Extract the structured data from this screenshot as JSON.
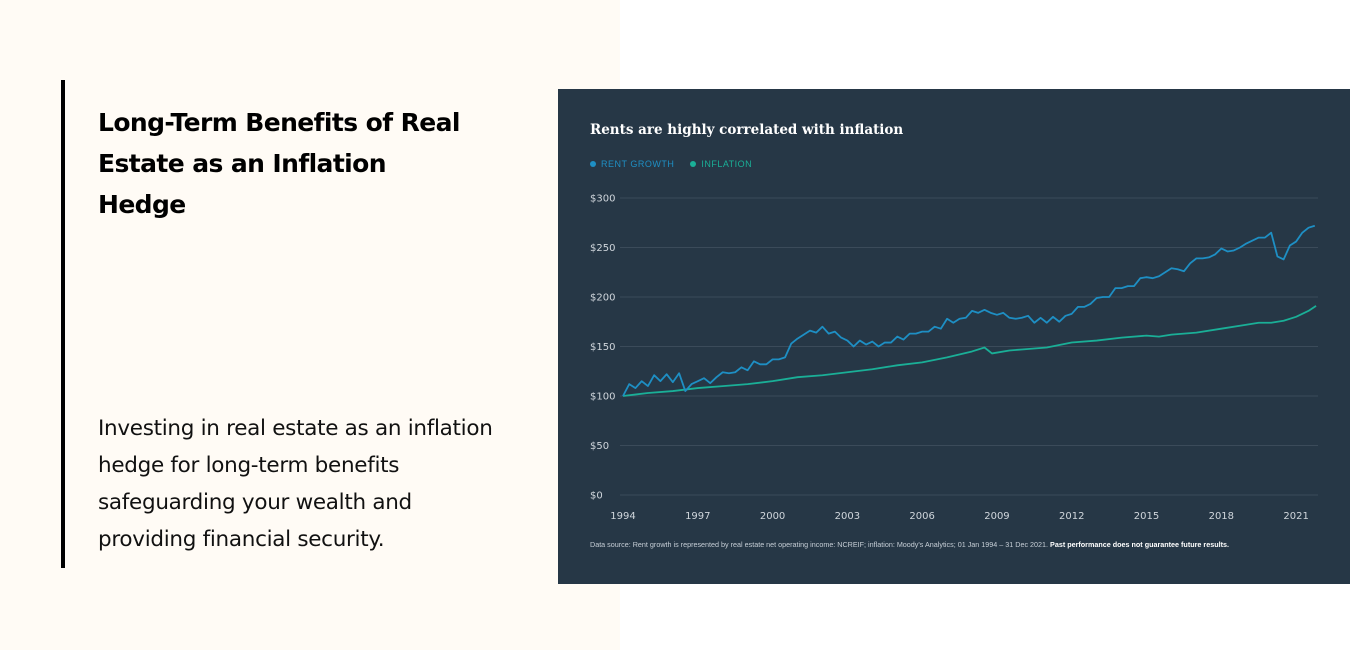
{
  "left": {
    "heading": "Long-Term Benefits of Real Estate as an Inflation Hedge",
    "body": "Investing in real estate as an inflation hedge for long-term benefits safeguarding your wealth and providing financial security."
  },
  "chart_data": {
    "type": "line",
    "title": "Rents are highly correlated with inflation",
    "legend": {
      "placement": "top-left",
      "entries": [
        "RENT GROWTH",
        "INFLATION"
      ]
    },
    "colors": {
      "background": "#263746",
      "rent": "#1e8fc4",
      "inflation": "#1aaf97",
      "grid": "#3b4b5a"
    },
    "grid": true,
    "ylim": [
      0,
      300
    ],
    "xlim": [
      1994,
      2021.8
    ],
    "y_ticks": [
      "$0",
      "$50",
      "$100",
      "$150",
      "$200",
      "$250",
      "$300"
    ],
    "y_tick_values": [
      0,
      50,
      100,
      150,
      200,
      250,
      300
    ],
    "x_ticks": [
      "1994",
      "1997",
      "2000",
      "2003",
      "2006",
      "2009",
      "2012",
      "2015",
      "2018",
      "2021"
    ],
    "x_tick_values": [
      1994,
      1997,
      2000,
      2003,
      2006,
      2009,
      2012,
      2015,
      2018,
      2021
    ],
    "series": [
      {
        "name": "RENT GROWTH",
        "x_start": 1994,
        "x_step": 0.25,
        "values": [
          100,
          112,
          108,
          115,
          110,
          121,
          115,
          122,
          114,
          123,
          105,
          112,
          115,
          118,
          113,
          119,
          124,
          123,
          124,
          129,
          126,
          135,
          132,
          132,
          137,
          137,
          139,
          153,
          158,
          162,
          166,
          164,
          170,
          163,
          165,
          159,
          156,
          150,
          156,
          152,
          155,
          150,
          154,
          154,
          160,
          157,
          163,
          163,
          165,
          165,
          170,
          168,
          178,
          174,
          178,
          179,
          186,
          184,
          187,
          184,
          182,
          184,
          179,
          178,
          179,
          181,
          174,
          179,
          174,
          180,
          175,
          181,
          183,
          190,
          190,
          193,
          199,
          200,
          200,
          209,
          209,
          211,
          211,
          219,
          220,
          219,
          221,
          225,
          229,
          228,
          226,
          234,
          239,
          239,
          240,
          243,
          249,
          246,
          247,
          250,
          254,
          257,
          260,
          260,
          265,
          241,
          238,
          252,
          256,
          265,
          270,
          272
        ]
      },
      {
        "name": "INFLATION",
        "points": [
          [
            1994,
            100
          ],
          [
            1995,
            103
          ],
          [
            1996,
            105
          ],
          [
            1997,
            108
          ],
          [
            1998,
            110
          ],
          [
            1999,
            112
          ],
          [
            2000,
            115
          ],
          [
            2001,
            119
          ],
          [
            2002,
            121
          ],
          [
            2003,
            124
          ],
          [
            2004,
            127
          ],
          [
            2005,
            131
          ],
          [
            2006,
            134
          ],
          [
            2007,
            139
          ],
          [
            2008,
            145
          ],
          [
            2008.5,
            149
          ],
          [
            2008.8,
            143
          ],
          [
            2009.5,
            146
          ],
          [
            2010,
            147
          ],
          [
            2011,
            149
          ],
          [
            2012,
            154
          ],
          [
            2013,
            156
          ],
          [
            2014,
            159
          ],
          [
            2015,
            161
          ],
          [
            2015.5,
            160
          ],
          [
            2016,
            162
          ],
          [
            2017,
            164
          ],
          [
            2018,
            168
          ],
          [
            2019,
            172
          ],
          [
            2019.5,
            174
          ],
          [
            2020,
            174
          ],
          [
            2020.5,
            176
          ],
          [
            2021,
            180
          ],
          [
            2021.5,
            186
          ],
          [
            2021.8,
            191
          ]
        ]
      }
    ],
    "note": "Data source: Rent growth is represented by real estate net operating income: NCREIF; inflation: Moody's Analytics; 01 Jan 1994 – 31 Dec 2021.",
    "note_bold": "Past performance does not guarantee future results."
  }
}
